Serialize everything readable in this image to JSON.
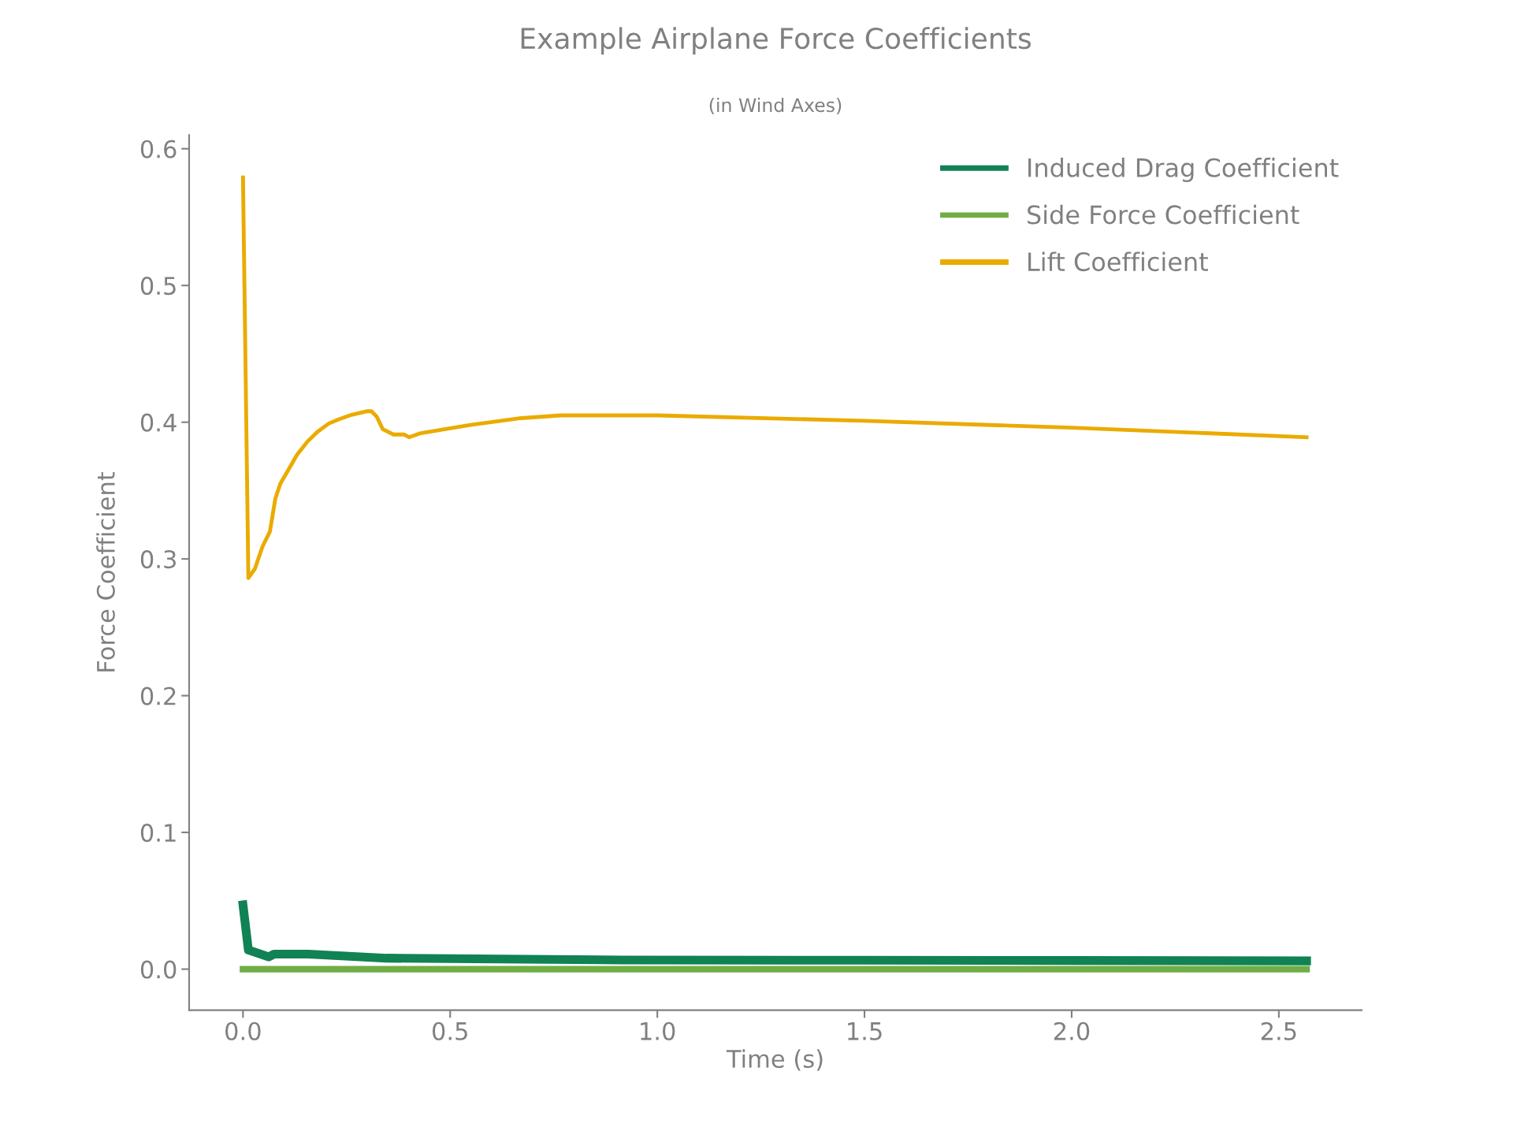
{
  "chart_data": {
    "type": "line",
    "title": "Example Airplane Force Coefficients",
    "subtitle": "(in Wind Axes)",
    "xlabel": "Time (s)",
    "ylabel": "Force Coefficient",
    "xlim": [
      -0.13,
      2.7
    ],
    "ylim": [
      -0.03,
      0.61
    ],
    "xticks": [
      {
        "value": 0,
        "label": "0.0"
      },
      0.5,
      {
        "value": 1,
        "label": "1.0"
      },
      1.5,
      {
        "value": 2,
        "label": "2.0"
      },
      2.5
    ],
    "yticks": [
      {
        "value": 0,
        "label": "0.0"
      },
      0.1,
      0.2,
      0.3,
      0.4,
      0.5,
      0.6
    ],
    "grid": false,
    "legend": "top right",
    "line_style": "solid",
    "marker": "none",
    "series": [
      {
        "name": "Induced Drag Coefficient",
        "color": "#108254",
        "x": [
          0,
          0.013,
          0.062,
          0.075,
          0.157,
          0.347,
          0.917,
          1.5,
          2.0,
          2.567
        ],
        "values": [
          0.047,
          0.014,
          0.009,
          0.011,
          0.011,
          0.008,
          0.0067,
          0.0065,
          0.0063,
          0.006
        ]
      },
      {
        "name": "Side Force Coefficient",
        "color": "#70ad47",
        "x": [
          0,
          2.567
        ],
        "values": [
          0,
          0
        ]
      },
      {
        "name": "Lift Coefficient",
        "color": "#eaab00",
        "x": [
          0,
          0.013,
          0.029,
          0.047,
          0.065,
          0.078,
          0.09,
          0.113,
          0.13,
          0.156,
          0.18,
          0.207,
          0.23,
          0.258,
          0.298,
          0.31,
          0.323,
          0.337,
          0.363,
          0.389,
          0.401,
          0.429,
          0.549,
          0.672,
          0.767,
          0.917,
          1.0,
          1.5,
          2.0,
          2.567
        ],
        "values": [
          0.579,
          0.286,
          0.293,
          0.309,
          0.32,
          0.344,
          0.355,
          0.367,
          0.376,
          0.386,
          0.393,
          0.399,
          0.402,
          0.405,
          0.408,
          0.408,
          0.404,
          0.395,
          0.391,
          0.391,
          0.389,
          0.392,
          0.398,
          0.403,
          0.405,
          0.405,
          0.405,
          0.401,
          0.396,
          0.389
        ]
      }
    ]
  }
}
